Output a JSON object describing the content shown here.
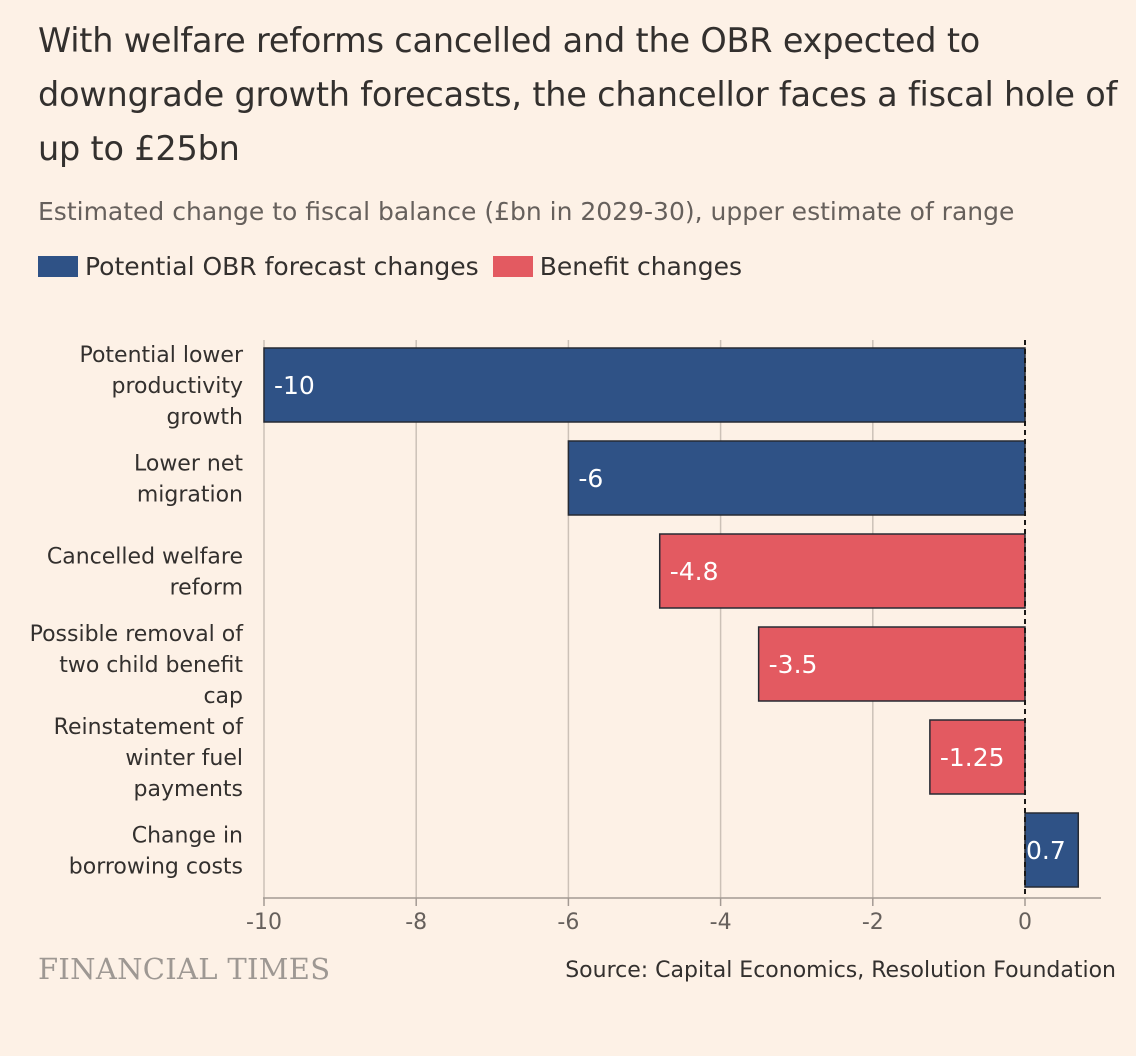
{
  "header": {
    "title": "With welfare reforms cancelled and the OBR expected to downgrade growth forecasts, the chancellor faces a fiscal hole of up to £25bn",
    "subtitle": "Estimated change to fiscal balance (£bn in 2029-30), upper estimate of range"
  },
  "legend": {
    "items": [
      {
        "label": "Potential OBR forecast changes",
        "color": "#2f5286"
      },
      {
        "label": "Benefit changes",
        "color": "#e35a61"
      }
    ]
  },
  "chart_data": {
    "type": "bar",
    "orientation": "horizontal",
    "categories": [
      [
        "Potential lower",
        "productivity",
        "growth"
      ],
      [
        "Lower net",
        "migration"
      ],
      [
        "Cancelled welfare",
        "reform"
      ],
      [
        "Possible removal of",
        "two child benefit",
        "cap"
      ],
      [
        "Reinstatement of",
        "winter fuel",
        "payments"
      ],
      [
        "Change in",
        "borrowing costs"
      ]
    ],
    "values": [
      -10,
      -6,
      -4.8,
      -3.5,
      -1.25,
      0.7
    ],
    "data_labels": [
      "-10",
      "-6",
      "-4.8",
      "-3.5",
      "-1.25",
      "0.7"
    ],
    "bar_groups": [
      "Potential OBR forecast changes",
      "Potential OBR forecast changes",
      "Benefit changes",
      "Benefit changes",
      "Benefit changes",
      "Potential OBR forecast changes"
    ],
    "xlim": [
      -10,
      1
    ],
    "xticks": [
      -10,
      -8,
      -6,
      -4,
      -2,
      0
    ],
    "xtick_labels": [
      "-10",
      "-8",
      "-6",
      "-4",
      "-2",
      "0"
    ],
    "grid": "vertical",
    "zero_line": "dashed",
    "legend_position": "top-left"
  },
  "footer": {
    "brand": "FINANCIAL TIMES",
    "source": "Source: Capital Economics, Resolution Foundation"
  }
}
